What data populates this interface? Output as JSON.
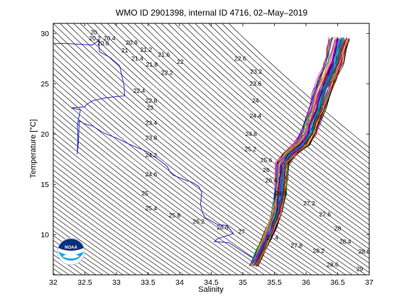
{
  "chart_data": {
    "type": "scatter",
    "title": "WMO ID 2901398, internal ID 4716, 02–May–2019",
    "xlabel": "Salinity",
    "ylabel": "Temperature [°C]",
    "xlim": [
      32,
      37
    ],
    "ylim": [
      6,
      31
    ],
    "xticks": [
      "32",
      "32.5",
      "33",
      "33.5",
      "34",
      "34.5",
      "35",
      "35.5",
      "36",
      "36.5",
      "37"
    ],
    "yticks": [
      "10",
      "15",
      "20",
      "25",
      "30"
    ],
    "logo_text": "NOAA",
    "density_contour_labels": [
      {
        "text": "20",
        "s": 32.64,
        "t": 29.9
      },
      {
        "text": "20.2",
        "s": 32.66,
        "t": 29.3
      },
      {
        "text": "20.4",
        "s": 32.89,
        "t": 29.3
      },
      {
        "text": "20.6",
        "s": 32.79,
        "t": 28.8
      },
      {
        "text": "20.8",
        "s": 33.24,
        "t": 28.9
      },
      {
        "text": "21",
        "s": 33.13,
        "t": 28.1
      },
      {
        "text": "21.2",
        "s": 33.47,
        "t": 28.2
      },
      {
        "text": "21.4",
        "s": 33.33,
        "t": 27.3
      },
      {
        "text": "21.6",
        "s": 33.75,
        "t": 27.7
      },
      {
        "text": "21.8",
        "s": 33.56,
        "t": 26.7
      },
      {
        "text": "22",
        "s": 34.01,
        "t": 27.0
      },
      {
        "text": "22.2",
        "s": 33.8,
        "t": 25.9
      },
      {
        "text": "22.6",
        "s": 34.96,
        "t": 27.3
      },
      {
        "text": "23.2",
        "s": 35.21,
        "t": 26.0
      },
      {
        "text": "23.6",
        "s": 35.2,
        "t": 24.8
      },
      {
        "text": "22.4",
        "s": 33.36,
        "t": 24.1
      },
      {
        "text": "22.8",
        "s": 33.55,
        "t": 23.1
      },
      {
        "text": "23",
        "s": 33.53,
        "t": 22.4
      },
      {
        "text": "24",
        "s": 35.2,
        "t": 23.1
      },
      {
        "text": "23.4",
        "s": 33.55,
        "t": 20.9
      },
      {
        "text": "24.4",
        "s": 35.2,
        "t": 21.6
      },
      {
        "text": "23.8",
        "s": 33.55,
        "t": 19.4
      },
      {
        "text": "24.8",
        "s": 35.13,
        "t": 19.8
      },
      {
        "text": "24.2",
        "s": 33.55,
        "t": 17.7
      },
      {
        "text": "25.2",
        "s": 35.12,
        "t": 18.3
      },
      {
        "text": "25.6",
        "s": 35.37,
        "t": 17.2
      },
      {
        "text": "24.6",
        "s": 33.55,
        "t": 15.8
      },
      {
        "text": "26",
        "s": 35.37,
        "t": 16.2
      },
      {
        "text": "26.4",
        "s": 35.45,
        "t": 15.2
      },
      {
        "text": "25",
        "s": 33.45,
        "t": 13.9
      },
      {
        "text": "26.8",
        "s": 35.6,
        "t": 13.9
      },
      {
        "text": "25.4",
        "s": 33.55,
        "t": 12.4
      },
      {
        "text": "27.2",
        "s": 36.05,
        "t": 12.9
      },
      {
        "text": "25.8",
        "s": 33.92,
        "t": 11.7
      },
      {
        "text": "27.6",
        "s": 36.3,
        "t": 11.8
      },
      {
        "text": "26.2",
        "s": 34.3,
        "t": 11.1
      },
      {
        "text": "26.6",
        "s": 34.68,
        "t": 10.5
      },
      {
        "text": "27",
        "s": 34.98,
        "t": 10.1
      },
      {
        "text": "28",
        "s": 36.5,
        "t": 10.4
      },
      {
        "text": "27.4",
        "s": 35.47,
        "t": 9.5
      },
      {
        "text": "28.4",
        "s": 36.62,
        "t": 9.1
      },
      {
        "text": "27.8",
        "s": 35.85,
        "t": 8.7
      },
      {
        "text": "28.2",
        "s": 36.2,
        "t": 8.2
      },
      {
        "text": "28.8",
        "s": 36.92,
        "t": 8.1
      },
      {
        "text": "28.6",
        "s": 36.42,
        "t": 6.8
      },
      {
        "text": "29",
        "s": 36.85,
        "t": 6.4
      }
    ],
    "cruise_track": [
      [
        32.0,
        29.0
      ],
      [
        32.2,
        29.0
      ],
      [
        32.45,
        28.9
      ],
      [
        32.62,
        28.85
      ],
      [
        32.72,
        29.3
      ],
      [
        32.73,
        28.2
      ],
      [
        32.9,
        27.6
      ],
      [
        33.05,
        26.8
      ],
      [
        33.12,
        24.8
      ],
      [
        33.13,
        23.8
      ],
      [
        32.82,
        23.6
      ],
      [
        32.62,
        23.3
      ],
      [
        32.52,
        22.9
      ],
      [
        32.5,
        22.7
      ],
      [
        32.28,
        22.6
      ],
      [
        32.43,
        22.4
      ],
      [
        32.4,
        21.5
      ],
      [
        32.38,
        20.8
      ],
      [
        32.39,
        19.9
      ],
      [
        32.38,
        18.0
      ],
      [
        32.4,
        19.3
      ],
      [
        32.41,
        21.3
      ],
      [
        32.5,
        21.0
      ],
      [
        32.62,
        20.8
      ],
      [
        32.8,
        20.1
      ],
      [
        33.0,
        19.6
      ],
      [
        33.2,
        19.0
      ],
      [
        33.5,
        18.2
      ],
      [
        33.7,
        17.3
      ],
      [
        33.8,
        16.8
      ],
      [
        33.85,
        16.2
      ],
      [
        33.9,
        15.9
      ],
      [
        34.1,
        15.4
      ],
      [
        34.2,
        15.2
      ],
      [
        34.3,
        14.8
      ],
      [
        34.35,
        14.2
      ],
      [
        34.33,
        13.0
      ],
      [
        34.36,
        12.2
      ],
      [
        34.4,
        11.7
      ],
      [
        34.6,
        11.0
      ],
      [
        34.75,
        10.9
      ],
      [
        34.85,
        10.1
      ],
      [
        34.6,
        9.6
      ],
      [
        34.55,
        9.3
      ],
      [
        34.78,
        9.2
      ],
      [
        34.95,
        8.5
      ],
      [
        35.15,
        7.7
      ]
    ],
    "profile_envelope": {
      "center": [
        [
          35.18,
          7.0
        ],
        [
          35.3,
          8.5
        ],
        [
          35.45,
          10.5
        ],
        [
          35.55,
          12.3
        ],
        [
          35.6,
          14.0
        ],
        [
          35.62,
          15.5
        ],
        [
          35.64,
          17.0
        ],
        [
          35.75,
          18.0
        ],
        [
          35.95,
          19.0
        ],
        [
          36.05,
          20.0
        ],
        [
          36.1,
          21.0
        ],
        [
          36.2,
          22.5
        ],
        [
          36.25,
          24.0
        ],
        [
          36.35,
          25.5
        ],
        [
          36.45,
          27.0
        ],
        [
          36.5,
          28.5
        ],
        [
          36.55,
          29.5
        ]
      ],
      "half_width": 0.17,
      "profile_count": 60
    },
    "grid": false,
    "legend": "none"
  }
}
